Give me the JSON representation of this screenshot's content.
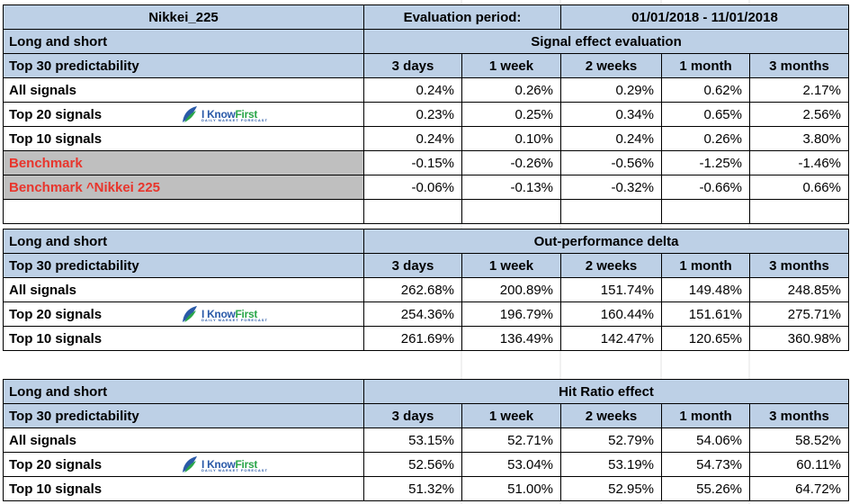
{
  "header": {
    "index": "Nikkei_225",
    "period_label": "Evaluation period:",
    "period_value": "01/01/2018 - 11/01/2018"
  },
  "logo": {
    "text_a": "I Know",
    "text_b": "First",
    "tagline": "DAILY MARKET FORECAST",
    "colors": {
      "blue": "#2a5aa8",
      "green": "#2aa64a"
    }
  },
  "columns": [
    "3 days",
    "1 week",
    "2 weeks",
    "1 month",
    "3 months"
  ],
  "sections": [
    {
      "mode": "Long and short",
      "title": "Signal effect evaluation",
      "subheader": "Top 30 predictability",
      "rows": [
        {
          "label": "All signals",
          "values": [
            "0.24%",
            "0.26%",
            "0.29%",
            "0.62%",
            "2.17%"
          ]
        },
        {
          "label": "Top 20 signals",
          "values": [
            "0.23%",
            "0.25%",
            "0.34%",
            "0.65%",
            "2.56%"
          ]
        },
        {
          "label": "Top 10 signals",
          "values": [
            "0.24%",
            "0.10%",
            "0.24%",
            "0.26%",
            "3.80%"
          ]
        },
        {
          "label": "Benchmark",
          "values": [
            "-0.15%",
            "-0.26%",
            "-0.56%",
            "-1.25%",
            "-1.46%"
          ]
        },
        {
          "label": "Benchmark ^Nikkei 225",
          "values": [
            "-0.06%",
            "-0.13%",
            "-0.32%",
            "-0.66%",
            "0.66%"
          ]
        }
      ]
    },
    {
      "mode": "Long and short",
      "title": "Out-performance delta",
      "subheader": "Top 30 predictability",
      "rows": [
        {
          "label": "All signals",
          "values": [
            "262.68%",
            "200.89%",
            "151.74%",
            "149.48%",
            "248.85%"
          ]
        },
        {
          "label": "Top 20 signals",
          "values": [
            "254.36%",
            "196.79%",
            "160.44%",
            "151.61%",
            "275.71%"
          ]
        },
        {
          "label": "Top 10 signals",
          "values": [
            "261.69%",
            "136.49%",
            "142.47%",
            "120.65%",
            "360.98%"
          ]
        }
      ]
    },
    {
      "mode": "Long and short",
      "title": "Hit Ratio effect",
      "subheader": "Top 30 predictability",
      "rows": [
        {
          "label": "All signals",
          "values": [
            "53.15%",
            "52.71%",
            "52.79%",
            "54.06%",
            "58.52%"
          ]
        },
        {
          "label": "Top 20 signals",
          "values": [
            "52.56%",
            "53.04%",
            "53.19%",
            "54.73%",
            "60.11%"
          ]
        },
        {
          "label": "Top 10 signals",
          "values": [
            "51.32%",
            "51.00%",
            "52.95%",
            "55.26%",
            "64.72%"
          ]
        }
      ]
    }
  ]
}
